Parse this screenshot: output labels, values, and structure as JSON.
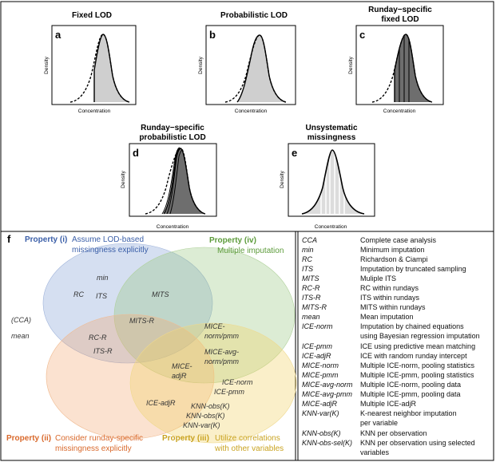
{
  "density_panels": [
    {
      "letter": "a",
      "title": [
        "Fixed LOD"
      ],
      "xlabel": "Concentration",
      "ylabel": "Density"
    },
    {
      "letter": "b",
      "title": [
        "Probabilistic LOD"
      ],
      "xlabel": "Concentration",
      "ylabel": "Density"
    },
    {
      "letter": "c",
      "title": [
        "Runday−specific",
        "fixed LOD"
      ],
      "xlabel": "Concentration",
      "ylabel": "Density"
    },
    {
      "letter": "d",
      "title": [
        "Runday−specific",
        "probabilistic LOD"
      ],
      "xlabel": "Concentration",
      "ylabel": "Density"
    },
    {
      "letter": "e",
      "title": [
        "Unsystematic",
        "missingness"
      ],
      "xlabel": "Concentration",
      "ylabel": "Density"
    }
  ],
  "venn": {
    "panel_letter": "f",
    "property_i": {
      "label": "Property (i)",
      "desc": [
        "Assume LOD-based",
        "missingness explicitly"
      ],
      "color": "#3b5fa8"
    },
    "property_ii": {
      "label": "Property (ii)",
      "desc": [
        "Consider runday-specific",
        "missingness explicitly"
      ],
      "color": "#d9692c"
    },
    "property_iii": {
      "label": "Property (iii)",
      "desc": [
        "Utilize correlations",
        "with other variables"
      ],
      "color": "#c9a320"
    },
    "property_iv": {
      "label": "Property (iv)",
      "desc": [
        "Multiple imputation"
      ],
      "color": "#5c9b3a"
    },
    "outside_methods": [
      "(CCA)",
      "mean"
    ],
    "region_methods": {
      "i_only": [
        "min",
        "RC",
        "ITS"
      ],
      "i_iv": [
        "MITS"
      ],
      "i_ii_iv": [
        "MITS-R"
      ],
      "i_ii": [
        "RC-R",
        "ITS-R"
      ],
      "iii_iv": [
        "MICE-",
        "norm/pmm",
        "MICE-avg-",
        "norm/pmm"
      ],
      "ii_iii_iv": [
        "MICE-",
        "adjR"
      ],
      "iii_only": [
        "ICE-norm",
        "ICE-pmm",
        "KNN-obs(K)",
        "KNN-obs(K)",
        "KNN-var(K)"
      ],
      "ii_iii": [
        "ICE-adjR"
      ]
    }
  },
  "legend": [
    {
      "abbr": "CCA",
      "desc": [
        "Complete case analysis"
      ]
    },
    {
      "abbr": "min",
      "desc": [
        "Minimum imputation"
      ]
    },
    {
      "abbr": "RC",
      "desc": [
        "Richardson & Ciampi"
      ]
    },
    {
      "abbr": "ITS",
      "desc": [
        "Imputation by truncated sampling"
      ]
    },
    {
      "abbr": "MITS",
      "desc": [
        "Muliple ITS"
      ]
    },
    {
      "abbr": "RC-R",
      "desc": [
        "RC within rundays"
      ]
    },
    {
      "abbr": "ITS-R",
      "desc": [
        "ITS within rundays"
      ]
    },
    {
      "abbr": "MITS-R",
      "desc": [
        "MITS within rundays"
      ]
    },
    {
      "abbr": "mean",
      "desc": [
        "Mean imputation"
      ]
    },
    {
      "abbr": "ICE-norm",
      "desc": [
        "Imputation by chained equations",
        "using Bayesian regression imputation"
      ]
    },
    {
      "abbr": "ICE-pmm",
      "desc": [
        "ICE using predictive mean matching"
      ]
    },
    {
      "abbr": "ICE-adjR",
      "desc": [
        "ICE with random runday intercept"
      ]
    },
    {
      "abbr": "MICE-norm",
      "desc": [
        "Multiple ICE-norm, pooling statistics"
      ]
    },
    {
      "abbr": "MICE-pmm",
      "desc": [
        "Multiple ICE-pmm, pooling statistics"
      ]
    },
    {
      "abbr": "MICE-avg-norm",
      "desc": [
        "Multiple ICE-norm, pooling data"
      ]
    },
    {
      "abbr": "MICE-avg-pmm",
      "desc": [
        "Multiple ICE-pmm, pooling data"
      ]
    },
    {
      "abbr": "MICE-adjR",
      "desc": [
        "Multiple ICE-adjR"
      ]
    },
    {
      "abbr": "KNN-var(K)",
      "desc": [
        "K-nearest neighbor imputation",
        "per variable"
      ]
    },
    {
      "abbr": "KNN-obs(K)",
      "desc": [
        "KNN per observation"
      ]
    },
    {
      "abbr": "KNN-obs-sel(K)",
      "desc": [
        "KNN per observation using selected",
        "variables"
      ]
    }
  ]
}
